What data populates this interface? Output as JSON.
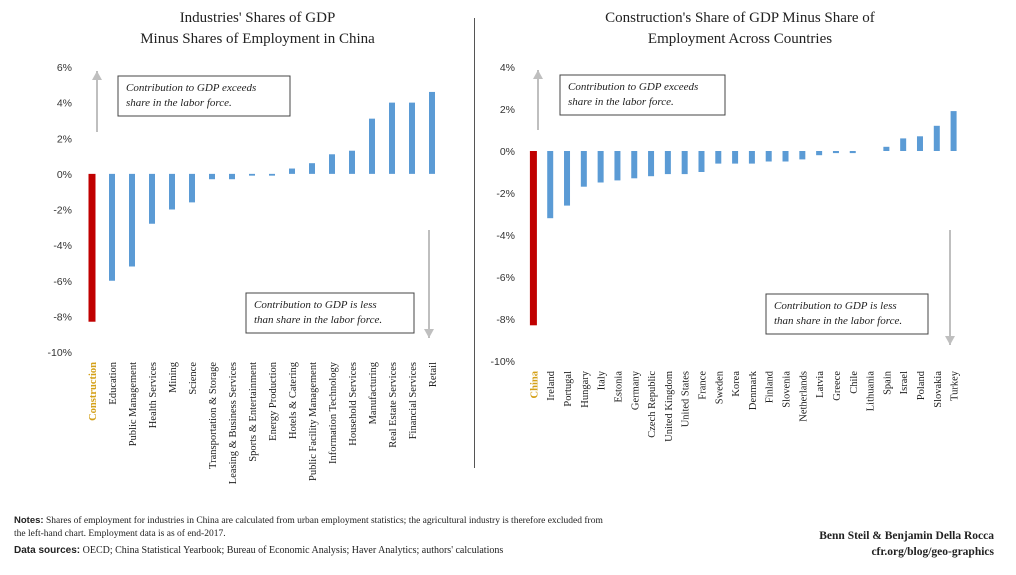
{
  "notes": {
    "label": "Notes:",
    "text": "Shares of employment for industries in China are calculated from urban employment statistics; the agricultural industry is therefore excluded from the left-hand chart. Employment data is as of end-2017."
  },
  "sources": {
    "label": "Data sources:",
    "text": "OECD; China Statistical Yearbook; Bureau of Economic Analysis; Haver Analytics; authors' calculations"
  },
  "credit": {
    "authors": "Benn Steil & Benjamin Della Rocca",
    "site": "cfr.org/blog/geo-graphics"
  },
  "colors": {
    "bar": "#5b9bd5",
    "highlight_bar": "#c00000",
    "highlight_label": "#d4a017",
    "arrow": "#bfbfbf"
  },
  "chart_data": [
    {
      "type": "bar",
      "title_line1": "Industries' Shares of GDP",
      "title_line2": "Minus Shares of Employment in China",
      "ylim": [
        -10,
        6
      ],
      "yticks": [
        "6%",
        "4%",
        "2%",
        "0%",
        "-2%",
        "-4%",
        "-6%",
        "-8%",
        "-10%"
      ],
      "yticks_values": [
        6,
        4,
        2,
        0,
        -2,
        -4,
        -6,
        -8,
        -10
      ],
      "categories": [
        "Construction",
        "Education",
        "Public Management",
        "Health Services",
        "Mining",
        "Science",
        "Transportation & Storage",
        "Leasing & Business Services",
        "Sports & Entertainment",
        "Energy Production",
        "Hotels & Catering",
        "Public Facility Management",
        "Information Technology",
        "Household Services",
        "Manufacturing",
        "Real Estate Services",
        "Financial Services",
        "Retail"
      ],
      "values": [
        -8.3,
        -6.0,
        -5.2,
        -2.8,
        -2.0,
        -1.6,
        -0.3,
        -0.3,
        -0.1,
        -0.1,
        0.3,
        0.6,
        1.1,
        1.3,
        3.1,
        4.0,
        4.0,
        4.6
      ],
      "highlight_index": 0,
      "annotation_top": [
        "Contribution to GDP exceeds",
        "share in the labor force."
      ],
      "annotation_bottom": [
        "Contribution to GDP is less",
        "than share in the labor force."
      ]
    },
    {
      "type": "bar",
      "title_line1": "Construction's Share of GDP Minus Share of",
      "title_line2": "Employment Across Countries",
      "ylim": [
        -10,
        4
      ],
      "yticks": [
        "4%",
        "2%",
        "0%",
        "-2%",
        "-4%",
        "-6%",
        "-8%",
        "-10%"
      ],
      "yticks_values": [
        4,
        2,
        0,
        -2,
        -4,
        -6,
        -8,
        -10
      ],
      "categories": [
        "China",
        "Ireland",
        "Portugal",
        "Hungary",
        "Italy",
        "Estonia",
        "Germany",
        "Czech Republic",
        "United Kingdom",
        "United States",
        "France",
        "Sweden",
        "Korea",
        "Denmark",
        "Finland",
        "Slovenia",
        "Netherlands",
        "Latvia",
        "Greece",
        "Chile",
        "Lithuania",
        "Spain",
        "Israel",
        "Poland",
        "Slovakia",
        "Turkey"
      ],
      "values": [
        -8.3,
        -3.2,
        -2.6,
        -1.7,
        -1.5,
        -1.4,
        -1.3,
        -1.2,
        -1.1,
        -1.1,
        -1.0,
        -0.6,
        -0.6,
        -0.6,
        -0.5,
        -0.5,
        -0.4,
        -0.2,
        -0.1,
        -0.1,
        0.0,
        0.2,
        0.6,
        0.7,
        1.2,
        1.9
      ],
      "highlight_index": 0,
      "annotation_top": [
        "Contribution to GDP exceeds",
        "share in the labor force."
      ],
      "annotation_bottom": [
        "Contribution to GDP is less",
        "than share in the labor force."
      ]
    }
  ]
}
